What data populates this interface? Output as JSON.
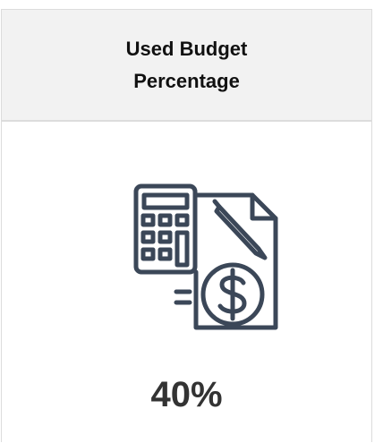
{
  "header": {
    "title": "Used Budget Percentage"
  },
  "kpi": {
    "value": "40%"
  }
}
